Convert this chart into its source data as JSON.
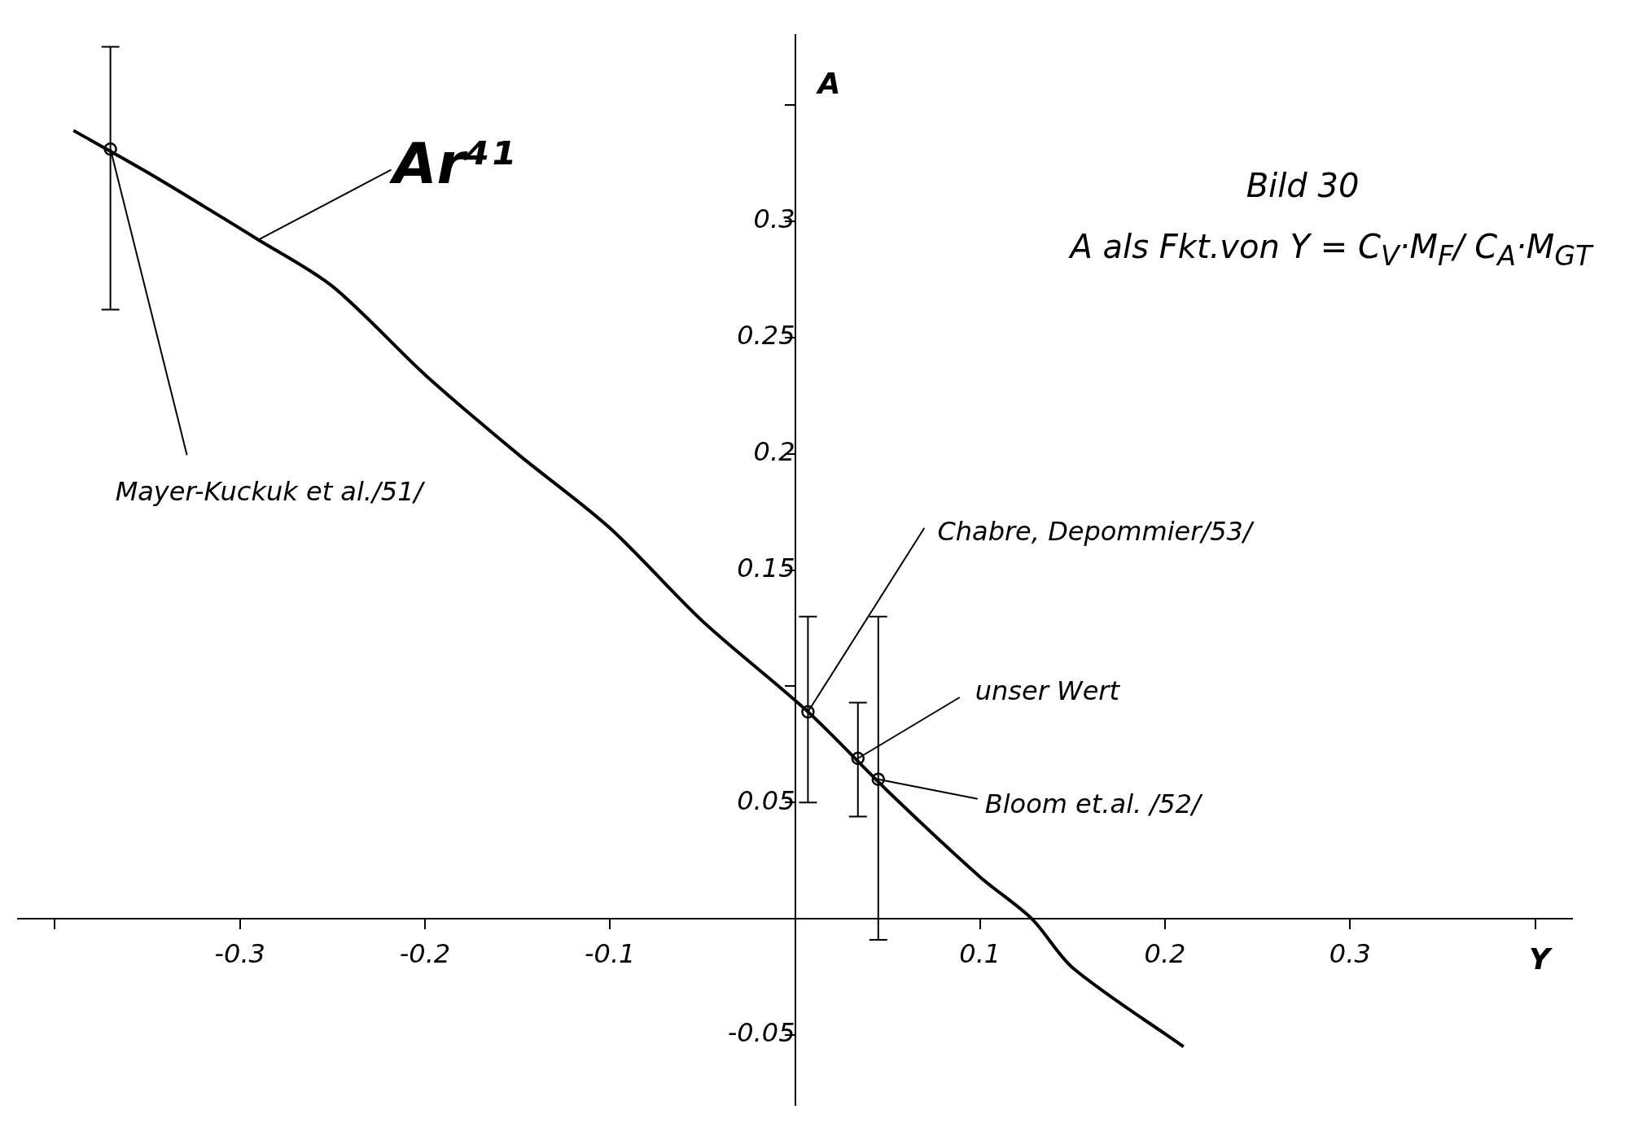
{
  "chart_data": {
    "type": "line",
    "title": "Bild 30",
    "subtitle": "A als Fkt.von Y = C$_{V}$·M$_{F}$/ C$_{A}$·M$_{GT}$",
    "xlabel": "Y",
    "ylabel": "A",
    "series": [
      {
        "type": "line",
        "color": "#000000",
        "marker": "none",
        "x": [
          -0.39,
          -0.35,
          -0.29,
          -0.25,
          -0.2,
          -0.15,
          -0.1,
          -0.05,
          0.007,
          0.05,
          0.1,
          0.128,
          0.15,
          0.21
        ],
        "values": [
          0.339,
          0.321,
          0.292,
          0.272,
          0.234,
          0.2,
          0.168,
          0.128,
          0.089,
          0.055,
          0.018,
          0,
          -0.021,
          -0.055
        ]
      },
      {
        "type": "scatter",
        "color": "#000000",
        "marker": "circle",
        "x": [
          -0.37,
          0.007,
          0.034,
          0.045
        ],
        "values": [
          0.331,
          0.089,
          0.069,
          0.06
        ],
        "errors": [
          [
            0.262,
            0.375
          ],
          [
            0.05,
            0.13
          ],
          [
            0.044,
            0.093
          ],
          [
            -0.009,
            0.13
          ]
        ]
      }
    ],
    "annotations": [
      {
        "text": "Ar⁴¹",
        "x": -0.29,
        "y": 0.292
      },
      {
        "text": "Mayer-Kuckuk et al./51/",
        "x": -0.37,
        "y": 0.331
      },
      {
        "text": "Chabre, Depommier/53/",
        "x": 0.007,
        "y": 0.089
      },
      {
        "text": "unser Wert",
        "x": 0.034,
        "y": 0.069
      },
      {
        "text": "Bloom et.al. /52/",
        "x": 0.045,
        "y": 0.06
      }
    ],
    "xlim": [
      -0.42,
      0.42
    ],
    "ylim": [
      -0.08,
      0.38
    ],
    "xticks": [
      {
        "value": -0.4,
        "label": null
      },
      -0.3,
      -0.2,
      -0.1,
      0.1,
      0.2,
      0.3,
      {
        "value": 0.4,
        "label": null
      }
    ],
    "yticks": [
      -0.05,
      0.05,
      {
        "value": 0.1,
        "label": null
      },
      0.15,
      0.2,
      0.25,
      0.3,
      {
        "value": 0.35,
        "label": null
      }
    ],
    "grid": false,
    "legend": false
  }
}
